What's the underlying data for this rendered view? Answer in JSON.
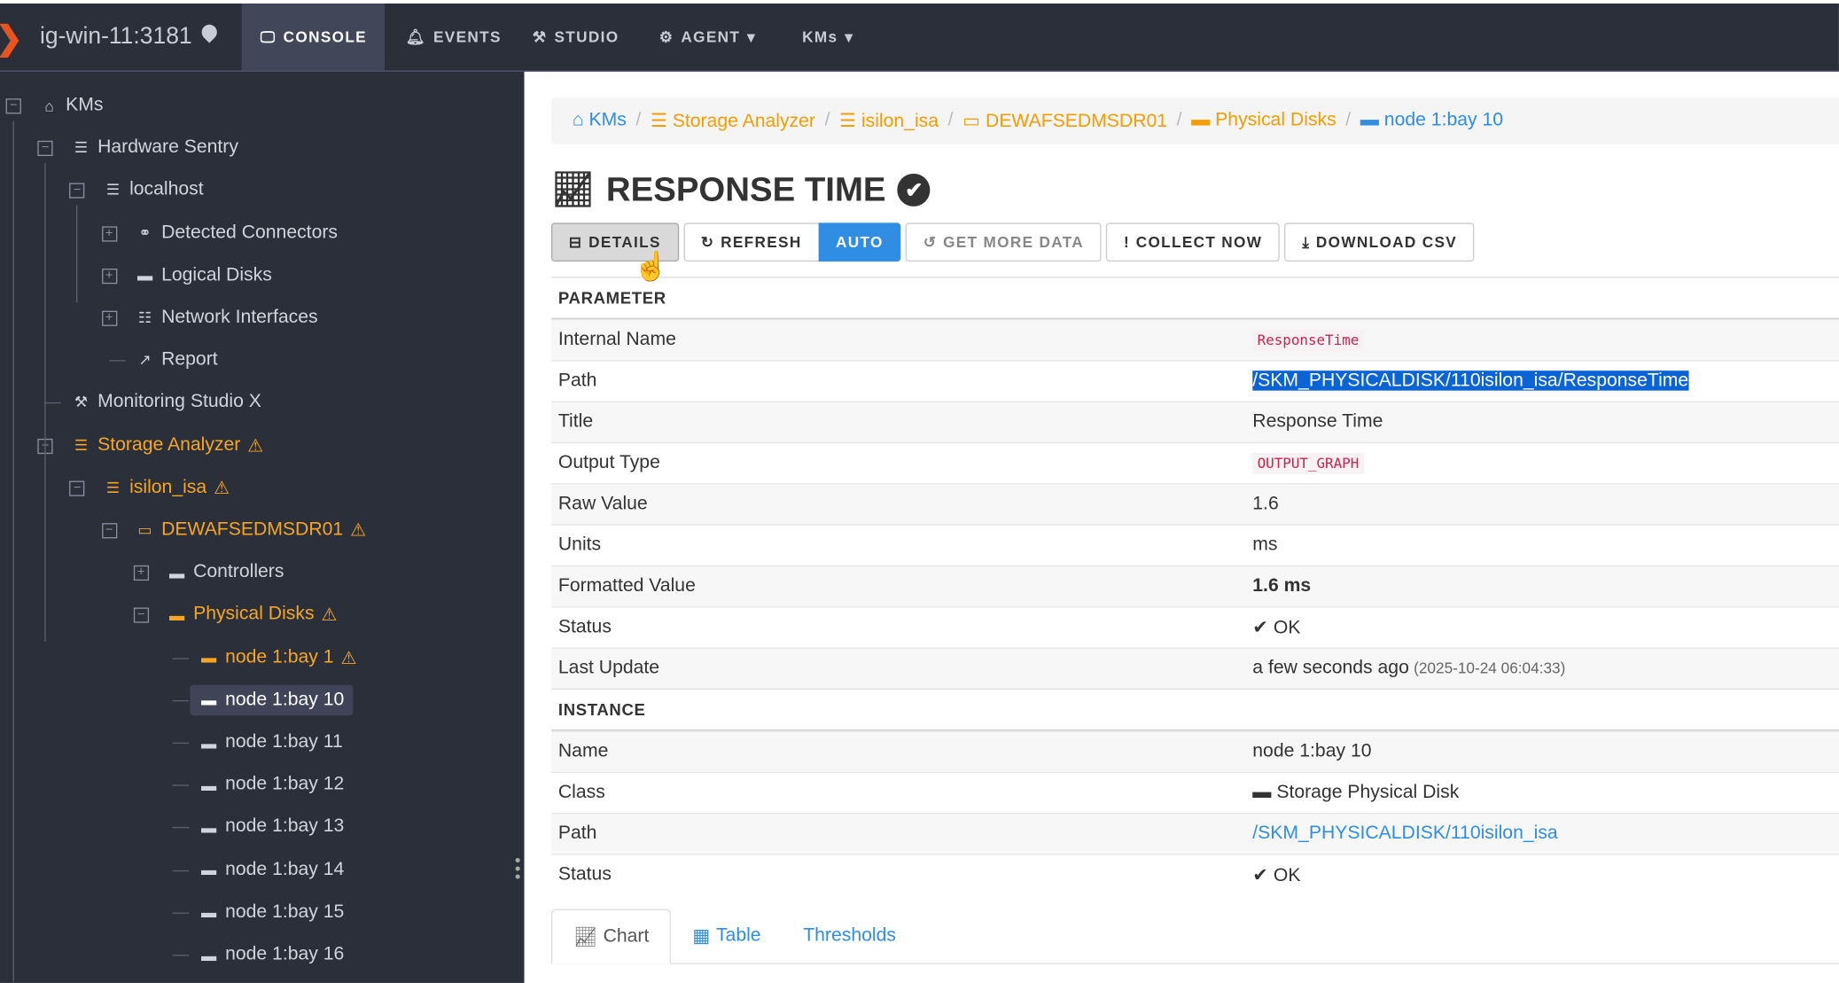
{
  "header": {
    "host": "ig-win-11:3181",
    "nav": [
      {
        "label": "CONSOLE",
        "icon": "monitor-icon"
      },
      {
        "label": "EVENTS",
        "icon": "bell-icon"
      },
      {
        "label": "STUDIO",
        "icon": "toolbox-icon"
      },
      {
        "label": "AGENT",
        "icon": "robot-icon"
      },
      {
        "label": "KMs"
      }
    ]
  },
  "tree": [
    {
      "label": "KMs",
      "icon": "home-icon",
      "level": 0,
      "toggle": "−"
    },
    {
      "label": "Hardware Sentry",
      "icon": "server-icon",
      "level": 1,
      "toggle": "−"
    },
    {
      "label": "localhost",
      "icon": "server-icon",
      "level": 2,
      "toggle": "−"
    },
    {
      "label": "Detected Connectors",
      "icon": "link-icon",
      "level": 3,
      "toggle": "+"
    },
    {
      "label": "Logical Disks",
      "icon": "hdd-icon",
      "level": 3,
      "toggle": "+"
    },
    {
      "label": "Network Interfaces",
      "icon": "network-icon",
      "level": 3,
      "toggle": "+"
    },
    {
      "label": "Report",
      "icon": "chart-line-icon",
      "level": 3
    },
    {
      "label": "Monitoring Studio X",
      "icon": "toolbox-icon",
      "level": 1
    },
    {
      "label": "Storage Analyzer",
      "icon": "server-icon",
      "level": 1,
      "toggle": "−",
      "warn": true
    },
    {
      "label": "isilon_isa",
      "icon": "server-icon",
      "level": 2,
      "toggle": "−",
      "warn": true
    },
    {
      "label": "DEWAFSEDMSDR01",
      "icon": "monitor-icon",
      "level": 3,
      "toggle": "−",
      "warn": true
    },
    {
      "label": "Controllers",
      "icon": "hdd-icon",
      "level": 4,
      "toggle": "+"
    },
    {
      "label": "Physical Disks",
      "icon": "hdd-icon",
      "level": 4,
      "toggle": "−",
      "warn": true
    },
    {
      "label": "node 1:bay 1",
      "icon": "hdd-icon",
      "level": 5,
      "warn": true
    },
    {
      "label": "node 1:bay 10",
      "icon": "hdd-icon",
      "level": 5,
      "selected": true
    },
    {
      "label": "node 1:bay 11",
      "icon": "hdd-icon",
      "level": 5
    },
    {
      "label": "node 1:bay 12",
      "icon": "hdd-icon",
      "level": 5
    },
    {
      "label": "node 1:bay 13",
      "icon": "hdd-icon",
      "level": 5
    },
    {
      "label": "node 1:bay 14",
      "icon": "hdd-icon",
      "level": 5
    },
    {
      "label": "node 1:bay 15",
      "icon": "hdd-icon",
      "level": 5
    },
    {
      "label": "node 1:bay 16",
      "icon": "hdd-icon",
      "level": 5
    }
  ],
  "breadcrumb": [
    {
      "label": "KMs",
      "color": "blue"
    },
    {
      "label": "Storage Analyzer",
      "color": "orange"
    },
    {
      "label": "isilon_isa",
      "color": "orange"
    },
    {
      "label": "DEWAFSEDMSDR01",
      "color": "orange"
    },
    {
      "label": "Physical Disks",
      "color": "orange"
    },
    {
      "label": "node 1:bay 10",
      "color": "blue"
    }
  ],
  "title": "RESPONSE TIME",
  "buttons": {
    "details": "DETAILS",
    "refresh": "REFRESH",
    "auto": "AUTO",
    "get_more": "GET MORE DATA",
    "collect": "COLLECT NOW",
    "download": "DOWNLOAD CSV"
  },
  "parameter": {
    "heading": "PARAMETER",
    "rows": [
      {
        "k": "Internal Name",
        "v": "ResponseTime",
        "style": "code"
      },
      {
        "k": "Path",
        "v": "/SKM_PHYSICALDISK/110isilon_isa/ResponseTime",
        "style": "hl"
      },
      {
        "k": "Title",
        "v": "Response Time"
      },
      {
        "k": "Output Type",
        "v": "OUTPUT_GRAPH",
        "style": "code"
      },
      {
        "k": "Raw Value",
        "v": "1.6"
      },
      {
        "k": "Units",
        "v": "ms"
      },
      {
        "k": "Formatted Value",
        "v": "1.6 ms",
        "style": "bold"
      },
      {
        "k": "Status",
        "v": "OK",
        "style": "ok"
      },
      {
        "k": "Last Update",
        "v": "a few seconds ago",
        "extra": "(2025-10-24 06:04:33)"
      }
    ]
  },
  "instance": {
    "heading": "INSTANCE",
    "rows": [
      {
        "k": "Name",
        "v": "node 1:bay 10"
      },
      {
        "k": "Class",
        "v": "Storage Physical Disk",
        "style": "class"
      },
      {
        "k": "Path",
        "v": "/SKM_PHYSICALDISK/110isilon_isa",
        "style": "link"
      },
      {
        "k": "Status",
        "v": "OK",
        "style": "ok"
      }
    ]
  },
  "tabs": [
    {
      "label": "Chart",
      "active": true
    },
    {
      "label": "Table"
    },
    {
      "label": "Thresholds"
    }
  ],
  "colors": {
    "accent": "#2f8de4",
    "warning": "#f59c00",
    "topbar": "#2b2f3a"
  }
}
